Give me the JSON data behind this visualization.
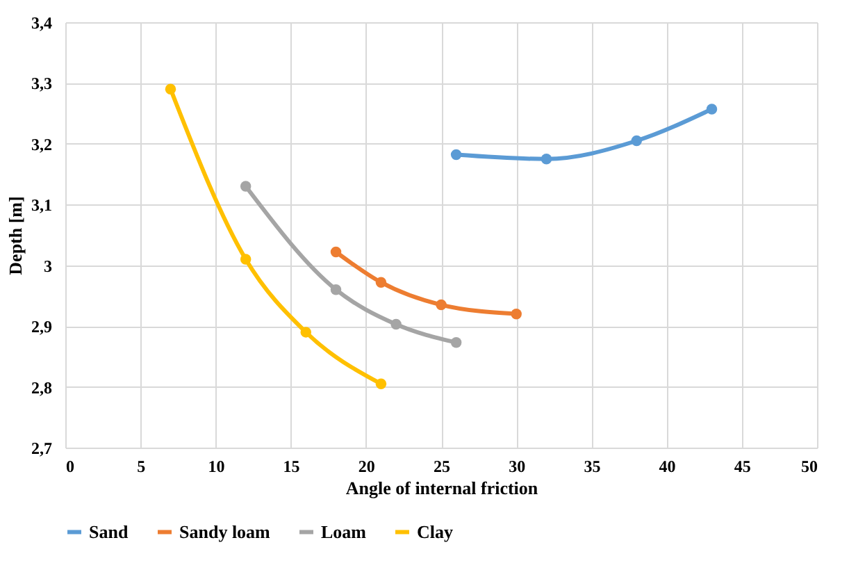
{
  "chart_data": {
    "type": "line",
    "xlabel": "Angle of internal friction",
    "ylabel": "Depth [m]",
    "xlim": [
      0,
      50
    ],
    "xticks": [
      0,
      5,
      10,
      15,
      20,
      25,
      30,
      35,
      40,
      45,
      50
    ],
    "ylim": [
      2.7,
      3.4
    ],
    "yticks": [
      {
        "value": 2.7,
        "label": "2,7"
      },
      {
        "value": 2.8,
        "label": "2,8"
      },
      {
        "value": 2.9,
        "label": "2,9"
      },
      {
        "value": 3,
        "label": "3"
      },
      {
        "value": 3.1,
        "label": "3,1"
      },
      {
        "value": 3.2,
        "label": "3,2"
      },
      {
        "value": 3.3,
        "label": "3,3"
      },
      {
        "value": 3.4,
        "label": "3,4"
      }
    ],
    "grid": true,
    "legend": "bottom",
    "marker": "circle",
    "line_style": "solid",
    "series": [
      {
        "name": "Sand",
        "color": "#5b9bd5",
        "x": [
          26,
          32,
          38,
          43
        ],
        "values": [
          3.182,
          3.175,
          3.205,
          3.257
        ]
      },
      {
        "name": "Sandy loam",
        "color": "#ed7d31",
        "x": [
          18,
          21,
          25,
          30
        ],
        "values": [
          3.022,
          2.972,
          2.935,
          2.92
        ]
      },
      {
        "name": "Loam",
        "color": "#a5a5a5",
        "x": [
          12,
          18,
          22,
          26
        ],
        "values": [
          3.13,
          2.96,
          2.903,
          2.873
        ]
      },
      {
        "name": "Clay",
        "color": "#ffc000",
        "x": [
          7,
          12,
          16,
          21
        ],
        "values": [
          3.29,
          3.01,
          2.89,
          2.805
        ]
      }
    ]
  }
}
